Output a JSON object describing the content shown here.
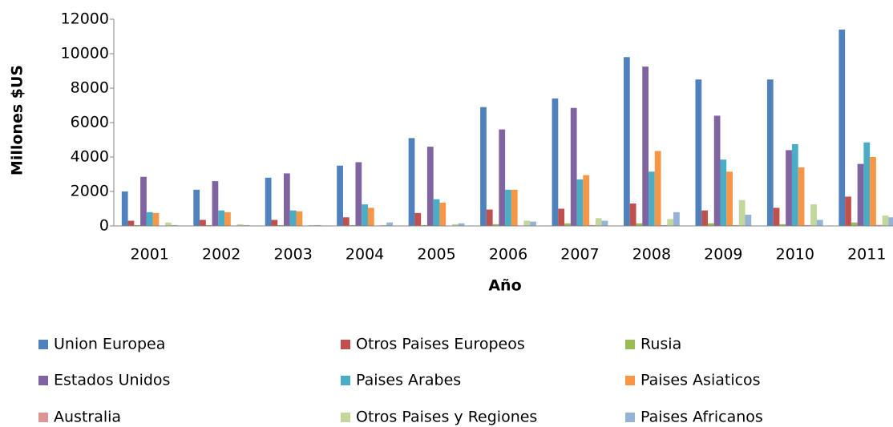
{
  "chart_data": {
    "type": "bar",
    "xlabel": "Año",
    "ylabel": "Millones $US",
    "categories": [
      "2001",
      "2002",
      "2003",
      "2004",
      "2005",
      "2006",
      "2007",
      "2008",
      "2009",
      "2010",
      "2011"
    ],
    "series": [
      {
        "name": "Union Europea",
        "color": "#4f81bd",
        "values": [
          2000,
          2100,
          2800,
          3500,
          5100,
          6900,
          7400,
          9800,
          8500,
          8500,
          11400
        ]
      },
      {
        "name": "Otros Paises Europeos",
        "color": "#c0504d",
        "values": [
          300,
          350,
          350,
          500,
          750,
          950,
          1000,
          1300,
          900,
          1050,
          1700
        ]
      },
      {
        "name": "Rusia",
        "color": "#9bbb59",
        "values": [
          50,
          50,
          50,
          50,
          50,
          100,
          150,
          150,
          150,
          100,
          200
        ]
      },
      {
        "name": "Estados Unidos",
        "color": "#8064a2",
        "values": [
          2850,
          2600,
          3050,
          3700,
          4600,
          5600,
          6850,
          9250,
          6400,
          4400,
          3600
        ]
      },
      {
        "name": "Paises Arabes",
        "color": "#4bacc6",
        "values": [
          800,
          900,
          900,
          1250,
          1550,
          2100,
          2700,
          3150,
          3850,
          4750,
          4850
        ]
      },
      {
        "name": "Paises Asiaticos",
        "color": "#f79646",
        "values": [
          750,
          800,
          850,
          1050,
          1350,
          2100,
          2950,
          4350,
          3150,
          3400,
          4000
        ]
      },
      {
        "name": "Australia",
        "color": "#d99694",
        "values": [
          20,
          20,
          20,
          20,
          20,
          30,
          50,
          50,
          50,
          50,
          60
        ]
      },
      {
        "name": "Otros Paises y Regiones",
        "color": "#c3d69b",
        "values": [
          200,
          100,
          50,
          50,
          100,
          300,
          450,
          400,
          1500,
          1250,
          600
        ]
      },
      {
        "name": "Paises Africanos",
        "color": "#95b3d7",
        "values": [
          50,
          50,
          50,
          200,
          150,
          250,
          300,
          800,
          650,
          350,
          500
        ]
      }
    ],
    "ylim": [
      0,
      12000
    ],
    "yticks": [
      0,
      2000,
      4000,
      6000,
      8000,
      10000,
      12000
    ],
    "grid": false,
    "legend": "bottom"
  }
}
